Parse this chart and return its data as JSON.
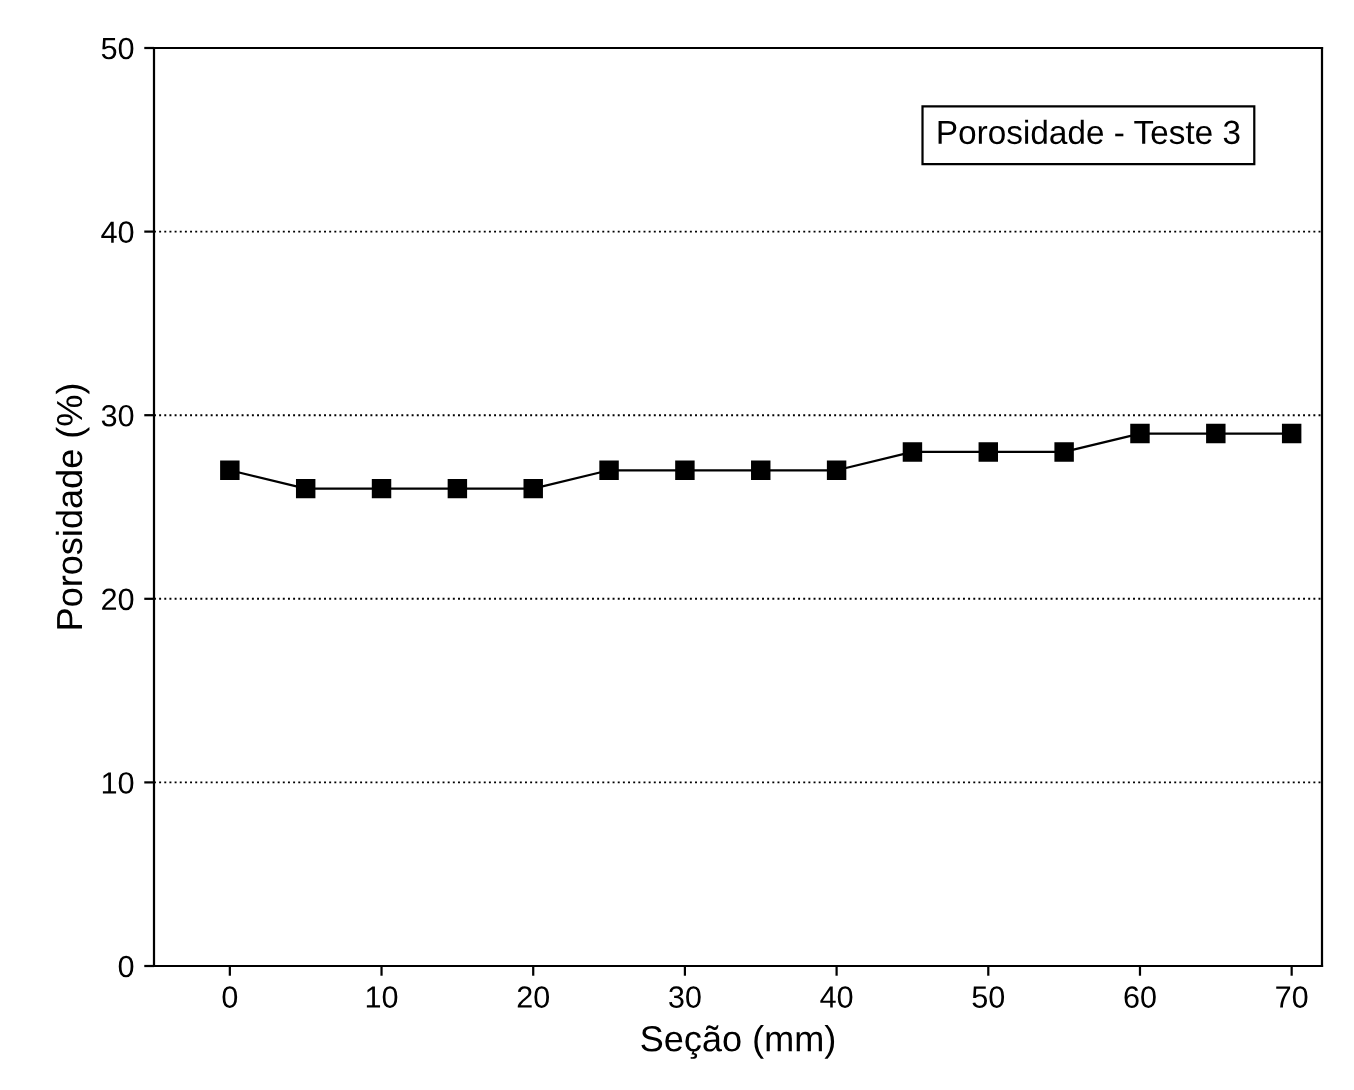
{
  "chart_data": {
    "type": "line",
    "xlabel": "Seção (mm)",
    "ylabel": "Porosidade (%)",
    "x": [
      0,
      5,
      10,
      15,
      20,
      25,
      30,
      35,
      40,
      45,
      50,
      55,
      60,
      65,
      70
    ],
    "series": [
      {
        "color": "#000000",
        "values": [
          27,
          26,
          26,
          26,
          26,
          27,
          27,
          27,
          27,
          28,
          28,
          28,
          29,
          29,
          29
        ]
      }
    ],
    "annotations": [
      "Porosidade - Teste 3"
    ],
    "xlim": [
      -5,
      72
    ],
    "ylim": [
      0,
      50
    ],
    "xticks": [
      0,
      10,
      20,
      30,
      40,
      50,
      60,
      70
    ],
    "yticks": [
      0,
      10,
      20,
      30,
      40,
      50
    ],
    "grid": "y",
    "marker": "square",
    "line_style": "solid",
    "legend": false
  }
}
